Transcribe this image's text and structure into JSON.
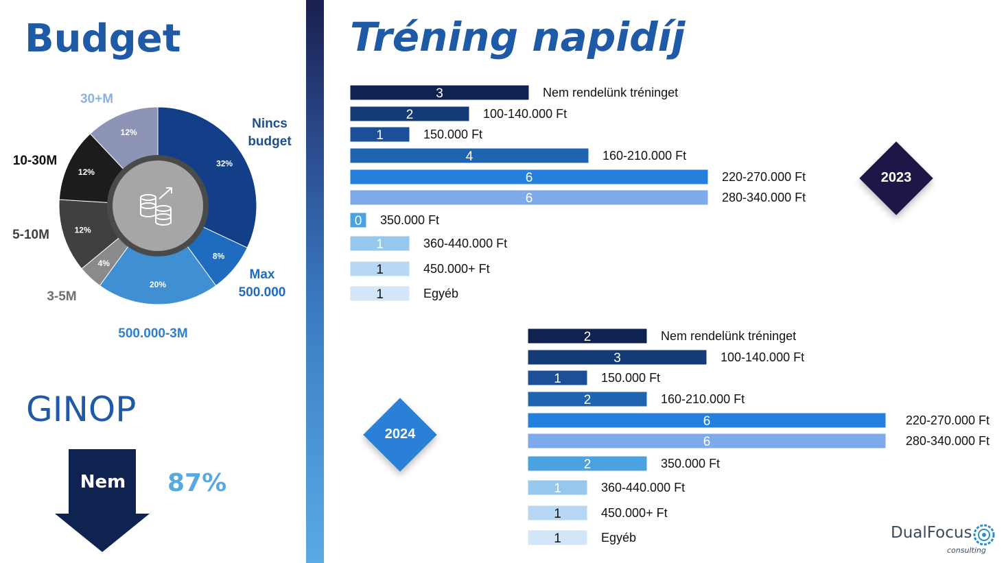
{
  "titles": {
    "budget": "Budget",
    "trening": "Tréning napidíj",
    "ginop": "GINOP"
  },
  "ginop": {
    "arrow_label": "Nem",
    "percent": "87%"
  },
  "logo": {
    "name": "DualFocus",
    "sub": "consulting"
  },
  "chart_data": [
    {
      "type": "pie",
      "title": "Budget",
      "slices": [
        {
          "label": "Nincs budget",
          "value": 32,
          "text": "32%",
          "color": "#123f87"
        },
        {
          "label": "Max 500.000",
          "value": 8,
          "text": "8%",
          "color": "#1f6bbf"
        },
        {
          "label": "500.000-3M",
          "value": 20,
          "text": "20%",
          "color": "#3f8fd2"
        },
        {
          "label": "3-5M",
          "value": 4,
          "text": "4%",
          "color": "#8a8a8a"
        },
        {
          "label": "5-10M",
          "value": 12,
          "text": "12%",
          "color": "#404040"
        },
        {
          "label": "10-30M",
          "value": 12,
          "text": "12%",
          "color": "#1c1c1c"
        },
        {
          "label": "30+M",
          "value": 12,
          "text": "12%",
          "color": "#8e94b5"
        }
      ],
      "outer_labels": [
        {
          "lines": [
            "Nincs",
            "budget"
          ],
          "color": "#1f4e8c"
        },
        {
          "lines": [
            "Max",
            "500.000"
          ],
          "color": "#1f6bbf"
        },
        {
          "lines": [
            "500.000-3M"
          ],
          "color": "#2f7fcf"
        },
        {
          "lines": [
            "3-5M"
          ],
          "color": "#707070"
        },
        {
          "lines": [
            "5-10M"
          ],
          "color": "#404040"
        },
        {
          "lines": [
            "10-30M"
          ],
          "color": "#111111"
        },
        {
          "lines": [
            "30+M"
          ],
          "color": "#8fb0e0"
        }
      ],
      "center_icon": "coins-icon"
    },
    {
      "type": "bar",
      "title": "2023",
      "orientation": "horizontal",
      "categories": [
        "Nem rendelünk tréninget",
        "100-140.000 Ft",
        "150.000 Ft",
        "160-210.000 Ft",
        "220-270.000 Ft",
        "280-340.000 Ft",
        "350.000 Ft",
        "360-440.000 Ft",
        "450.000+ Ft",
        "Egyéb"
      ],
      "values": [
        3,
        2,
        1,
        4,
        6,
        6,
        0,
        1,
        1,
        1
      ],
      "colors": [
        "#0f2350",
        "#153a78",
        "#1b4f98",
        "#1f64b0",
        "#2480dc",
        "#7ea9ea",
        "#4aa3e0",
        "#96c8ee",
        "#b6d8f4",
        "#d3e6f8"
      ],
      "label_colors": [
        "#ffffff",
        "#ffffff",
        "#ffffff",
        "#ffffff",
        "#ffffff",
        "#ffffff",
        "#ffffff",
        "#ffffff",
        "#111111",
        "#111111"
      ]
    },
    {
      "type": "bar",
      "title": "2024",
      "orientation": "horizontal",
      "categories": [
        "Nem rendelünk tréninget",
        "100-140.000 Ft",
        "150.000 Ft",
        "160-210.000 Ft",
        "220-270.000 Ft",
        "280-340.000 Ft",
        "350.000 Ft",
        "360-440.000 Ft",
        "450.000+ Ft",
        "Egyéb"
      ],
      "values": [
        2,
        3,
        1,
        2,
        6,
        6,
        2,
        1,
        1,
        1
      ],
      "colors": [
        "#0f2350",
        "#153a78",
        "#1b4f98",
        "#1f64b0",
        "#2480dc",
        "#7ea9ea",
        "#4aa3e0",
        "#96c8ee",
        "#b6d8f4",
        "#d3e6f8"
      ],
      "label_colors": [
        "#ffffff",
        "#ffffff",
        "#ffffff",
        "#ffffff",
        "#ffffff",
        "#ffffff",
        "#ffffff",
        "#ffffff",
        "#111111",
        "#111111"
      ]
    }
  ],
  "badges": {
    "y2023": "2023",
    "y2024": "2024"
  }
}
